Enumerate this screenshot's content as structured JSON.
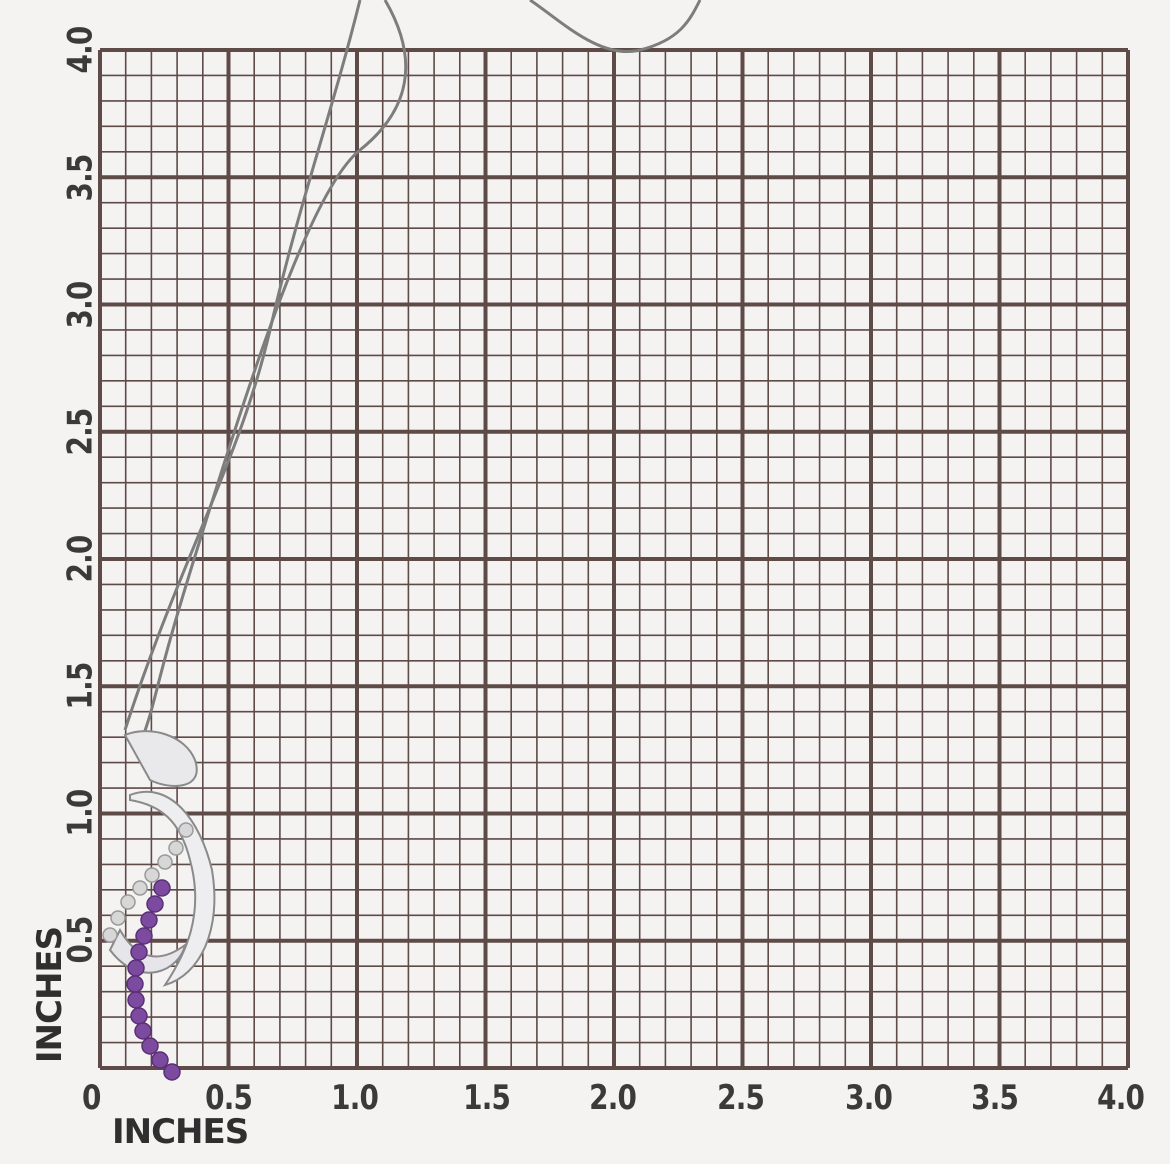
{
  "grid": {
    "x_ticks": [
      "0",
      "0.5",
      "1.0",
      "1.5",
      "2.0",
      "2.5",
      "3.0",
      "3.5",
      "4.0"
    ],
    "y_ticks": [
      "0.5",
      "1.0",
      "1.5",
      "2.0",
      "2.5",
      "3.0",
      "3.5",
      "4.0"
    ],
    "x_label": "INCHES",
    "y_label": "INCHES",
    "line_color": "#5e4a46",
    "paper_color": "#f4f3f2"
  },
  "pendant": {
    "metal_color": "#e9e9ec",
    "amethyst_color": "#7c4a9e",
    "diamond_color": "#d7d7d7"
  }
}
